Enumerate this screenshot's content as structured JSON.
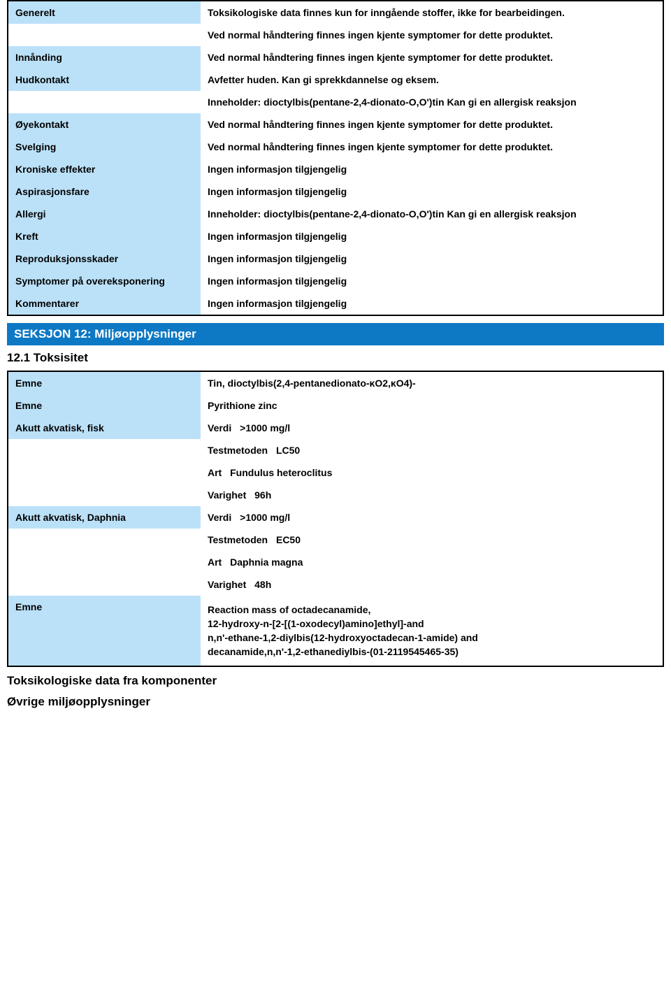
{
  "colors": {
    "label_bg": "#bbe1f8",
    "section_bg": "#0d78c4",
    "section_text": "#ffffff",
    "border": "#000000",
    "page_bg": "#ffffff",
    "text": "#000000"
  },
  "section11": {
    "rows": [
      {
        "label": "Generelt",
        "values": [
          "Toksikologiske data finnes kun for inngående stoffer, ikke for bearbeidingen.",
          "Ved normal håndtering finnes ingen kjente symptomer for dette produktet."
        ]
      },
      {
        "label": "Innånding",
        "values": [
          "Ved normal håndtering finnes ingen kjente symptomer for dette produktet."
        ]
      },
      {
        "label": "Hudkontakt",
        "values": [
          "Avfetter huden. Kan gi sprekkdannelse og eksem.",
          "Inneholder: dioctylbis(pentane-2,4-dionato-O,O')tin Kan gi en allergisk reaksjon"
        ]
      },
      {
        "label": "Øyekontakt",
        "values": [
          "Ved normal håndtering finnes ingen kjente symptomer for dette produktet."
        ]
      },
      {
        "label": "Svelging",
        "values": [
          "Ved normal håndtering finnes ingen kjente symptomer for dette produktet."
        ]
      },
      {
        "label": "Kroniske effekter",
        "values": [
          "Ingen informasjon tilgjengelig"
        ]
      },
      {
        "label": "Aspirasjonsfare",
        "values": [
          "Ingen informasjon tilgjengelig"
        ]
      },
      {
        "label": "Allergi",
        "values": [
          "Inneholder: dioctylbis(pentane-2,4-dionato-O,O')tin Kan gi en allergisk reaksjon"
        ]
      },
      {
        "label": "Kreft",
        "values": [
          "Ingen informasjon tilgjengelig"
        ]
      },
      {
        "label": "Reproduksjonsskader",
        "values": [
          "Ingen informasjon tilgjengelig"
        ]
      },
      {
        "label": "Symptomer på overeksponering",
        "values": [
          "Ingen informasjon tilgjengelig"
        ]
      },
      {
        "label": "Kommentarer",
        "values": [
          "Ingen informasjon tilgjengelig"
        ]
      }
    ]
  },
  "section12": {
    "header": "SEKSJON 12: Miljøopplysninger",
    "subsection": "12.1 Toksisitet",
    "emne1": {
      "label": "Emne",
      "value": "Tin, dioctylbis(2,4-pentanedionato-κO2,κO4)-"
    },
    "emne2": {
      "label": "Emne",
      "value": "Pyrithione zinc"
    },
    "fisk": {
      "label": "Akutt akvatisk, fisk",
      "verdi_key": "Verdi",
      "verdi": ">1000 mg/l",
      "testmetoden_key": "Testmetoden",
      "testmetoden": "LC50",
      "art_key": "Art",
      "art": "Fundulus heteroclitus",
      "varighet_key": "Varighet",
      "varighet": "96h"
    },
    "daphnia": {
      "label": "Akutt akvatisk, Daphnia",
      "verdi_key": "Verdi",
      "verdi": ">1000 mg/l",
      "testmetoden_key": "Testmetoden",
      "testmetoden": "EC50",
      "art_key": "Art",
      "art": "Daphnia magna",
      "varighet_key": "Varighet",
      "varighet": "48h"
    },
    "emne3": {
      "label": "Emne",
      "lines": [
        "Reaction mass of octadecanamide,",
        "12-hydroxy-n-[2-[(1-oxodecyl)amino]ethyl]-and",
        "n,n'-ethane-1,2-diylbis(12-hydroxyoctadecan-1-amide) and",
        "decanamide,n,n'-1,2-ethanediylbis-(01-2119545465-35)"
      ]
    }
  },
  "bottom": {
    "title1": "Toksikologiske data fra komponenter",
    "title2": "Øvrige miljøopplysninger"
  }
}
